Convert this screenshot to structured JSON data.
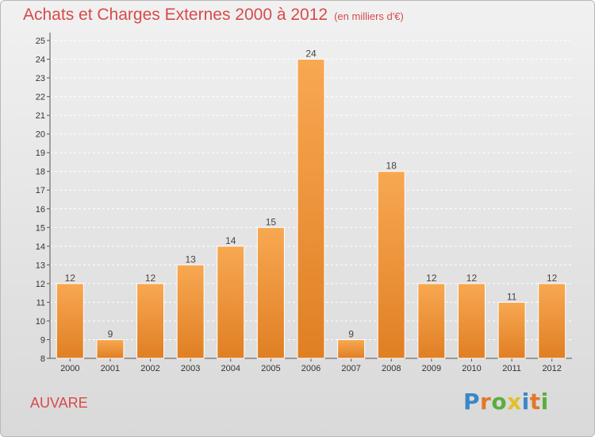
{
  "header": {
    "title": "Achats et Charges Externes 2000 à 2012",
    "unit": "(en milliers d'€)"
  },
  "footer": {
    "location": "AUVARE",
    "logo_text": "Proxiti"
  },
  "colors": {
    "title": "#d84a4a",
    "bar_light": "#f8a852",
    "bar_dark": "#e07f24",
    "logo_letters": [
      "#3a87c8",
      "#e0782a",
      "#5aae3c",
      "#e0c02a",
      "#3a87c8",
      "#e0782a",
      "#5aae3c"
    ]
  },
  "chart_data": {
    "type": "bar",
    "categories": [
      "2000",
      "2001",
      "2002",
      "2003",
      "2004",
      "2005",
      "2006",
      "2007",
      "2008",
      "2009",
      "2010",
      "2011",
      "2012"
    ],
    "values": [
      12,
      9,
      12,
      13,
      14,
      15,
      24,
      9,
      18,
      12,
      12,
      11,
      12
    ],
    "ylim": [
      8,
      25
    ],
    "yticks": [
      8,
      9,
      10,
      11,
      12,
      13,
      14,
      15,
      16,
      17,
      18,
      19,
      20,
      21,
      22,
      23,
      24,
      25
    ],
    "grid": true,
    "legend": "none",
    "data_labels": true
  }
}
